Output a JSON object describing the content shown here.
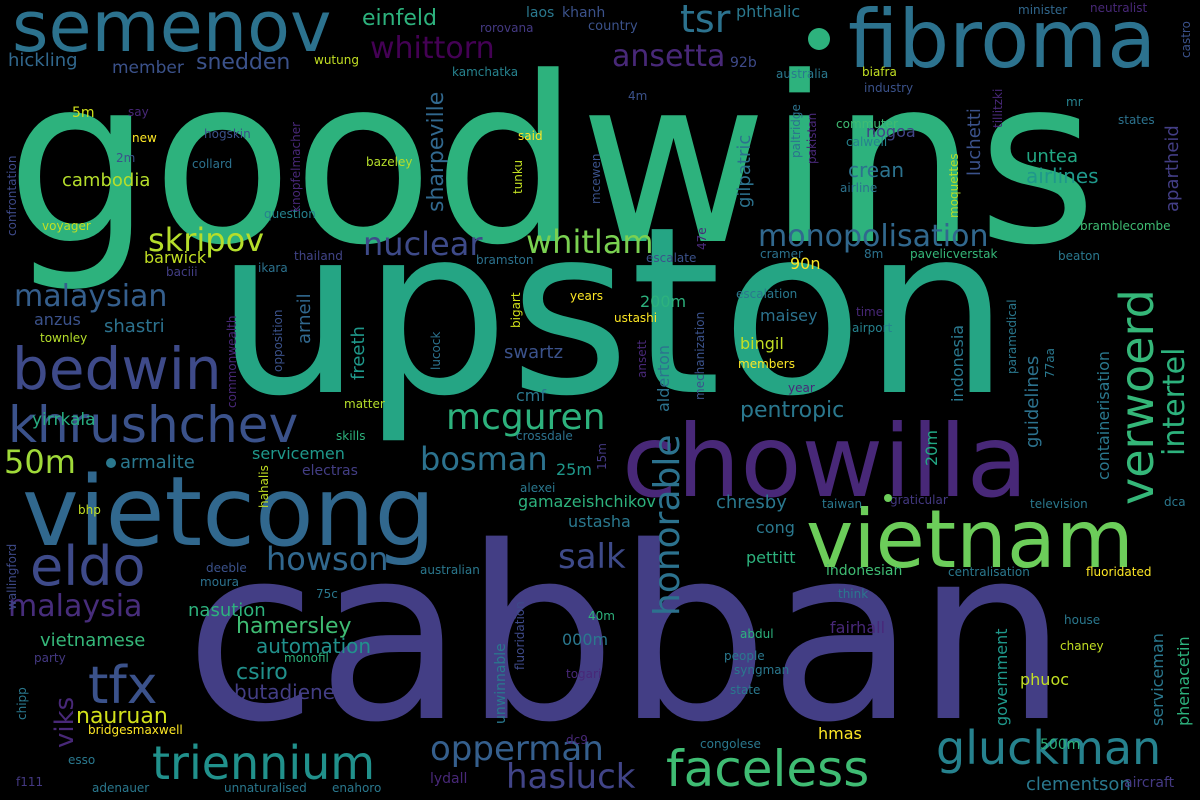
{
  "words": [
    {
      "text": "goodwins",
      "color": "#2db27d"
    },
    {
      "text": "upston",
      "color": "#25a584"
    },
    {
      "text": "cabban",
      "color": "#433e85"
    },
    {
      "text": "chowilla",
      "color": "#482878"
    },
    {
      "text": "vietcong",
      "color": "#31688e"
    },
    {
      "text": "fibroma",
      "color": "#2c728e"
    },
    {
      "text": "vietnam",
      "color": "#6ccd5a"
    },
    {
      "text": "semenov",
      "color": "#2c728e"
    },
    {
      "text": "bedwin",
      "color": "#3e4a89"
    },
    {
      "text": "khrushchev",
      "color": "#3b528b"
    },
    {
      "text": "faceless",
      "color": "#3fbc73"
    },
    {
      "text": "gluckman",
      "color": "#26828e"
    },
    {
      "text": "triennium",
      "color": "#21918c"
    },
    {
      "text": "eldo",
      "color": "#3e4a89"
    },
    {
      "text": "tfx",
      "color": "#3b528b"
    },
    {
      "text": "verwoerd",
      "color": "#35b779"
    },
    {
      "text": "mcguren",
      "color": "#2db27d"
    },
    {
      "text": "opperman",
      "color": "#355f8d"
    },
    {
      "text": "hasluck",
      "color": "#414487"
    },
    {
      "text": "howson",
      "color": "#31688e"
    },
    {
      "text": "bosman",
      "color": "#2c728e"
    },
    {
      "text": "malaysia",
      "color": "#472d7b"
    },
    {
      "text": "malaysian",
      "color": "#355f8d"
    },
    {
      "text": "nuclear",
      "color": "#3e4a89"
    },
    {
      "text": "whitlam",
      "color": "#7ad151"
    },
    {
      "text": "monopolisation",
      "color": "#31688e"
    },
    {
      "text": "skripov",
      "color": "#b5de2b"
    },
    {
      "text": "whittorn",
      "color": "#440154"
    },
    {
      "text": "ansetta",
      "color": "#482878"
    },
    {
      "text": "tsr",
      "color": "#2c728e"
    },
    {
      "text": "einfeld",
      "color": "#2db27d"
    },
    {
      "text": "snedden",
      "color": "#3b528b"
    },
    {
      "text": "hickling",
      "color": "#31688e"
    },
    {
      "text": "member",
      "color": "#3b528b"
    },
    {
      "text": "honorable",
      "color": "#2c728e"
    },
    {
      "text": "salk",
      "color": "#3e4a89"
    },
    {
      "text": "intertel",
      "color": "#2db27d"
    },
    {
      "text": "cambodia",
      "color": "#b5de2b"
    },
    {
      "text": "50m",
      "color": "#a0da39"
    },
    {
      "text": "armalite",
      "color": "#2a788e"
    },
    {
      "text": "yirrkala",
      "color": "#27ad81"
    },
    {
      "text": "viks",
      "color": "#482878"
    },
    {
      "text": "nauruan",
      "color": "#d2e21b"
    },
    {
      "text": "pentropic",
      "color": "#2a788e"
    },
    {
      "text": "hamersley",
      "color": "#3fbc73"
    },
    {
      "text": "automation",
      "color": "#21918c"
    },
    {
      "text": "csiro",
      "color": "#21918c"
    },
    {
      "text": "butadiene",
      "color": "#433e85"
    },
    {
      "text": "nasution",
      "color": "#2db27d"
    },
    {
      "text": "vietnamese",
      "color": "#35b779"
    },
    {
      "text": "arneil",
      "color": "#31688e"
    },
    {
      "text": "freeth",
      "color": "#1f988b"
    },
    {
      "text": "shastri",
      "color": "#2c728e"
    },
    {
      "text": "anzus",
      "color": "#3b528b"
    },
    {
      "text": "barwick",
      "color": "#c2df23"
    },
    {
      "text": "sharpeville",
      "color": "#31688e"
    },
    {
      "text": "gilpatric",
      "color": "#2c728e"
    },
    {
      "text": "luchetti",
      "color": "#3b528b"
    },
    {
      "text": "airlines",
      "color": "#1f988b"
    },
    {
      "text": "crean",
      "color": "#2c728e"
    },
    {
      "text": "untea",
      "color": "#22a884"
    },
    {
      "text": "apartheid",
      "color": "#433e85"
    },
    {
      "text": "nogoa",
      "color": "#414487"
    },
    {
      "text": "phthalic",
      "color": "#2a788e"
    },
    {
      "text": "92b",
      "color": "#3e4a89"
    },
    {
      "text": "laos",
      "color": "#2a788e"
    },
    {
      "text": "khanh",
      "color": "#3b528b"
    },
    {
      "text": "rorovana",
      "color": "#443983"
    },
    {
      "text": "country",
      "color": "#3b528b"
    },
    {
      "text": "minister",
      "color": "#31688e"
    },
    {
      "text": "neutralist",
      "color": "#482878"
    },
    {
      "text": "castro",
      "color": "#3b528b"
    },
    {
      "text": "wutung",
      "color": "#c2df23"
    },
    {
      "text": "kamchatka",
      "color": "#26828e"
    },
    {
      "text": "australia",
      "color": "#2a788e"
    },
    {
      "text": "biafra",
      "color": "#c2df23"
    },
    {
      "text": "industry",
      "color": "#3b528b"
    },
    {
      "text": "tillitzki",
      "color": "#482878"
    },
    {
      "text": "mr",
      "color": "#26828e"
    },
    {
      "text": "states",
      "color": "#2c728e"
    },
    {
      "text": "confrontation",
      "color": "#3e4a89"
    },
    {
      "text": "5m",
      "color": "#d2e21b"
    },
    {
      "text": "say",
      "color": "#482878"
    },
    {
      "text": "new",
      "color": "#fde725"
    },
    {
      "text": "2m",
      "color": "#3b528b"
    },
    {
      "text": "hogskin",
      "color": "#3b528b"
    },
    {
      "text": "collard",
      "color": "#2c728e"
    },
    {
      "text": "knopfelmacher",
      "color": "#482878"
    },
    {
      "text": "bazeley",
      "color": "#b5de2b"
    },
    {
      "text": "said",
      "color": "#fde725"
    },
    {
      "text": "tunku",
      "color": "#c2df23"
    },
    {
      "text": "mcewen",
      "color": "#3b528b"
    },
    {
      "text": "4m",
      "color": "#3b528b"
    },
    {
      "text": "paltridge",
      "color": "#2c728e"
    },
    {
      "text": "pakistan",
      "color": "#482878"
    },
    {
      "text": "commuter",
      "color": "#3fbc73"
    },
    {
      "text": "calwell",
      "color": "#26828e"
    },
    {
      "text": "airline",
      "color": "#2c728e"
    },
    {
      "text": "moquettes",
      "color": "#b5de2b"
    },
    {
      "text": "bramblecombe",
      "color": "#3fbc73"
    },
    {
      "text": "question",
      "color": "#26828e"
    },
    {
      "text": "voyager",
      "color": "#c2df23"
    },
    {
      "text": "thailand",
      "color": "#414487"
    },
    {
      "text": "ikara",
      "color": "#2c728e"
    },
    {
      "text": "baciii",
      "color": "#433e85"
    },
    {
      "text": "bramston",
      "color": "#2c728e"
    },
    {
      "text": "47e",
      "color": "#482878"
    },
    {
      "text": "escalate",
      "color": "#3b528b"
    },
    {
      "text": "cramer",
      "color": "#2c728e"
    },
    {
      "text": "8m",
      "color": "#2c728e"
    },
    {
      "text": "pavelicverstak",
      "color": "#35b779"
    },
    {
      "text": "beaton",
      "color": "#2a788e"
    },
    {
      "text": "90n",
      "color": "#fde725"
    },
    {
      "text": "200m",
      "color": "#2db27d"
    },
    {
      "text": "escalation",
      "color": "#2a788e"
    },
    {
      "text": "years",
      "color": "#fde725"
    },
    {
      "text": "bigart",
      "color": "#d2e21b"
    },
    {
      "text": "ustashi",
      "color": "#fde725"
    },
    {
      "text": "lucock",
      "color": "#2c728e"
    },
    {
      "text": "opposition",
      "color": "#3b528b"
    },
    {
      "text": "commonwealth",
      "color": "#482878"
    },
    {
      "text": "townley",
      "color": "#b5de2b"
    },
    {
      "text": "maisey",
      "color": "#2c728e"
    },
    {
      "text": "bingil",
      "color": "#c2df23"
    },
    {
      "text": "time",
      "color": "#482878"
    },
    {
      "text": "airport",
      "color": "#26828e"
    },
    {
      "text": "paramedical",
      "color": "#2a788e"
    },
    {
      "text": "77aa",
      "color": "#2a788e"
    },
    {
      "text": "mechanization",
      "color": "#3b528b"
    },
    {
      "text": "ansett",
      "color": "#482878"
    },
    {
      "text": "members",
      "color": "#fde725"
    },
    {
      "text": "year",
      "color": "#482878"
    },
    {
      "text": "indonesia",
      "color": "#2a788e"
    },
    {
      "text": "guidelines",
      "color": "#2c728e"
    },
    {
      "text": "containerisation",
      "color": "#2a788e"
    },
    {
      "text": "swartz",
      "color": "#3b528b"
    },
    {
      "text": "alderton",
      "color": "#2c728e"
    },
    {
      "text": "cmf",
      "color": "#2a788e"
    },
    {
      "text": "matter",
      "color": "#b5de2b"
    },
    {
      "text": "skills",
      "color": "#2db27d"
    },
    {
      "text": "crossdale",
      "color": "#2c728e"
    },
    {
      "text": "electras",
      "color": "#433e85"
    },
    {
      "text": "servicemen",
      "color": "#1f988b"
    },
    {
      "text": "25m",
      "color": "#1f988b"
    },
    {
      "text": "15m",
      "color": "#443983"
    },
    {
      "text": "alexei",
      "color": "#2a788e"
    },
    {
      "text": "gamazeishchikov",
      "color": "#2db27d"
    },
    {
      "text": "chresby",
      "color": "#2a788e"
    },
    {
      "text": "20m",
      "color": "#22a884"
    },
    {
      "text": "taiwan",
      "color": "#2a788e"
    },
    {
      "text": "graticular",
      "color": "#443983"
    },
    {
      "text": "television",
      "color": "#2a788e"
    },
    {
      "text": "dca",
      "color": "#2a788e"
    },
    {
      "text": "hahalis",
      "color": "#c2df23"
    },
    {
      "text": "wallingford",
      "color": "#3e4a89"
    },
    {
      "text": "bhp",
      "color": "#c2df23"
    },
    {
      "text": "ustasha",
      "color": "#2a788e"
    },
    {
      "text": "cong",
      "color": "#2a788e"
    },
    {
      "text": "pettitt",
      "color": "#2db27d"
    },
    {
      "text": "deeble",
      "color": "#3b528b"
    },
    {
      "text": "moura",
      "color": "#2c728e"
    },
    {
      "text": "australian",
      "color": "#2a788e"
    },
    {
      "text": "fluoridation",
      "color": "#3e4a89"
    },
    {
      "text": "indonesian",
      "color": "#3fbc73"
    },
    {
      "text": "centralisation",
      "color": "#2a788e"
    },
    {
      "text": "fluoridated",
      "color": "#fde725"
    },
    {
      "text": "government",
      "color": "#1f988b"
    },
    {
      "text": "serviceman",
      "color": "#2a788e"
    },
    {
      "text": "phenacetin",
      "color": "#2db27d"
    },
    {
      "text": "75c",
      "color": "#2a788e"
    },
    {
      "text": "think",
      "color": "#2a788e"
    },
    {
      "text": "fairhall",
      "color": "#482878"
    },
    {
      "text": "house",
      "color": "#2a788e"
    },
    {
      "text": "chaney",
      "color": "#c2df23"
    },
    {
      "text": "40m",
      "color": "#2db27d"
    },
    {
      "text": "000m",
      "color": "#2a788e"
    },
    {
      "text": "unwinnable",
      "color": "#2a788e"
    },
    {
      "text": "abdul",
      "color": "#2db27d"
    },
    {
      "text": "people",
      "color": "#2a788e"
    },
    {
      "text": "syngman",
      "color": "#2a788e"
    },
    {
      "text": "state",
      "color": "#2a788e"
    },
    {
      "text": "phuoc",
      "color": "#c2df23"
    },
    {
      "text": "party",
      "color": "#443983"
    },
    {
      "text": "chipp",
      "color": "#2a788e"
    },
    {
      "text": "monofil",
      "color": "#2db27d"
    },
    {
      "text": "togari",
      "color": "#482878"
    },
    {
      "text": "hmas",
      "color": "#fde725"
    },
    {
      "text": "bridgesmaxwell",
      "color": "#fde725"
    },
    {
      "text": "esso",
      "color": "#2a788e"
    },
    {
      "text": "dc9",
      "color": "#482878"
    },
    {
      "text": "lydall",
      "color": "#482878"
    },
    {
      "text": "congolese",
      "color": "#2a788e"
    },
    {
      "text": "500m",
      "color": "#2db27d"
    },
    {
      "text": "clementson",
      "color": "#2a788e"
    },
    {
      "text": "f111",
      "color": "#443983"
    },
    {
      "text": "adenauer",
      "color": "#2a788e"
    },
    {
      "text": "unnaturalised",
      "color": "#2a788e"
    },
    {
      "text": "enahoro",
      "color": "#2a788e"
    },
    {
      "text": "aircraft",
      "color": "#443983"
    }
  ]
}
